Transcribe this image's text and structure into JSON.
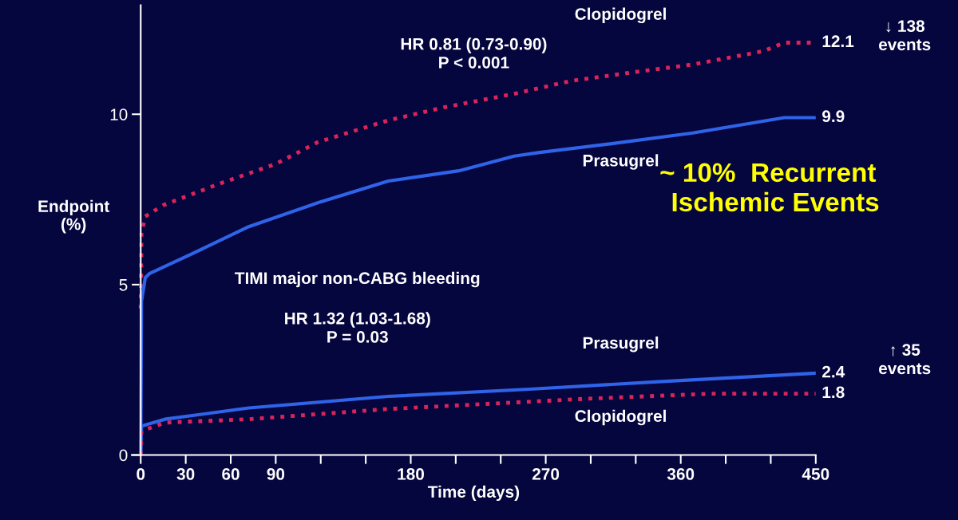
{
  "chart_data": {
    "type": "line",
    "xlabel": "Time (days)",
    "ylabel": "Endpoint\n(%)",
    "xlim": [
      -6,
      450
    ],
    "ylim": [
      0,
      13.2
    ],
    "xticks": [
      0,
      30,
      60,
      90,
      {
        "value": 120,
        "label": null
      },
      {
        "value": 150,
        "label": null
      },
      180,
      {
        "value": 210,
        "label": null
      },
      {
        "value": 240,
        "label": null
      },
      270,
      {
        "value": 300,
        "label": null
      },
      {
        "value": 330,
        "label": null
      },
      360,
      {
        "value": 390,
        "label": null
      },
      {
        "value": 420,
        "label": null
      },
      450
    ],
    "yticks": [
      0,
      5,
      10
    ],
    "grid": false,
    "legend": false,
    "series": [
      {
        "name": "Clopidogrel",
        "color": "#d9245a",
        "line_style": "dotted",
        "x": [
          0,
          0.5,
          3,
          15,
          53,
          90,
          118,
          165,
          202,
          249,
          287,
          328,
          368,
          415,
          429,
          450
        ],
        "values": [
          4.3,
          6.5,
          7.0,
          7.33,
          7.97,
          8.54,
          9.18,
          9.82,
          10.2,
          10.6,
          10.98,
          11.23,
          11.46,
          11.85,
          12.1,
          12.1
        ],
        "value_labels": [
          null,
          null,
          null,
          null,
          null,
          null,
          null,
          null,
          null,
          null,
          null,
          null,
          null,
          null,
          null,
          "12.1"
        ]
      },
      {
        "name": "Prasugrel",
        "color": "#2f63e8",
        "line_style": "solid",
        "x": [
          0,
          0.5,
          3,
          6,
          34,
          72,
          118,
          165,
          212,
          249,
          266,
          313,
          368,
          429,
          450
        ],
        "values": [
          0,
          4.5,
          5.2,
          5.33,
          5.9,
          6.7,
          7.4,
          8.04,
          8.34,
          8.77,
          8.88,
          9.13,
          9.45,
          9.9,
          9.9
        ],
        "value_labels": [
          null,
          null,
          null,
          null,
          null,
          null,
          null,
          null,
          null,
          null,
          null,
          null,
          null,
          null,
          "9.9"
        ]
      },
      {
        "name": "Prasugrel",
        "color": "#2f63e8",
        "line_style": "solid",
        "x": [
          0,
          0.5,
          16,
          72,
          165,
          259,
          345,
          450
        ],
        "values": [
          0,
          0.85,
          1.05,
          1.38,
          1.72,
          1.93,
          2.15,
          2.4
        ],
        "value_labels": [
          null,
          null,
          null,
          null,
          null,
          null,
          null,
          "2.4"
        ]
      },
      {
        "name": "Clopidogrel",
        "color": "#d9245a",
        "line_style": "dotted",
        "x": [
          0,
          0.5,
          16,
          72,
          165,
          297,
          380,
          450
        ],
        "values": [
          0,
          0.7,
          0.95,
          1.05,
          1.35,
          1.65,
          1.8,
          1.8
        ],
        "value_labels": [
          null,
          null,
          null,
          null,
          null,
          null,
          null,
          "1.8"
        ]
      }
    ],
    "annotations": [
      "HR 0.81 (0.73-0.90)\nP < 0.001",
      "TIMI major non-CABG bleeding",
      "HR 1.32 (1.03-1.68)\nP = 0.03",
      "↓ 138\nevents",
      "↑ 35\nevents",
      "~ 10%  Recurrent\n  Ischemic Events"
    ]
  }
}
